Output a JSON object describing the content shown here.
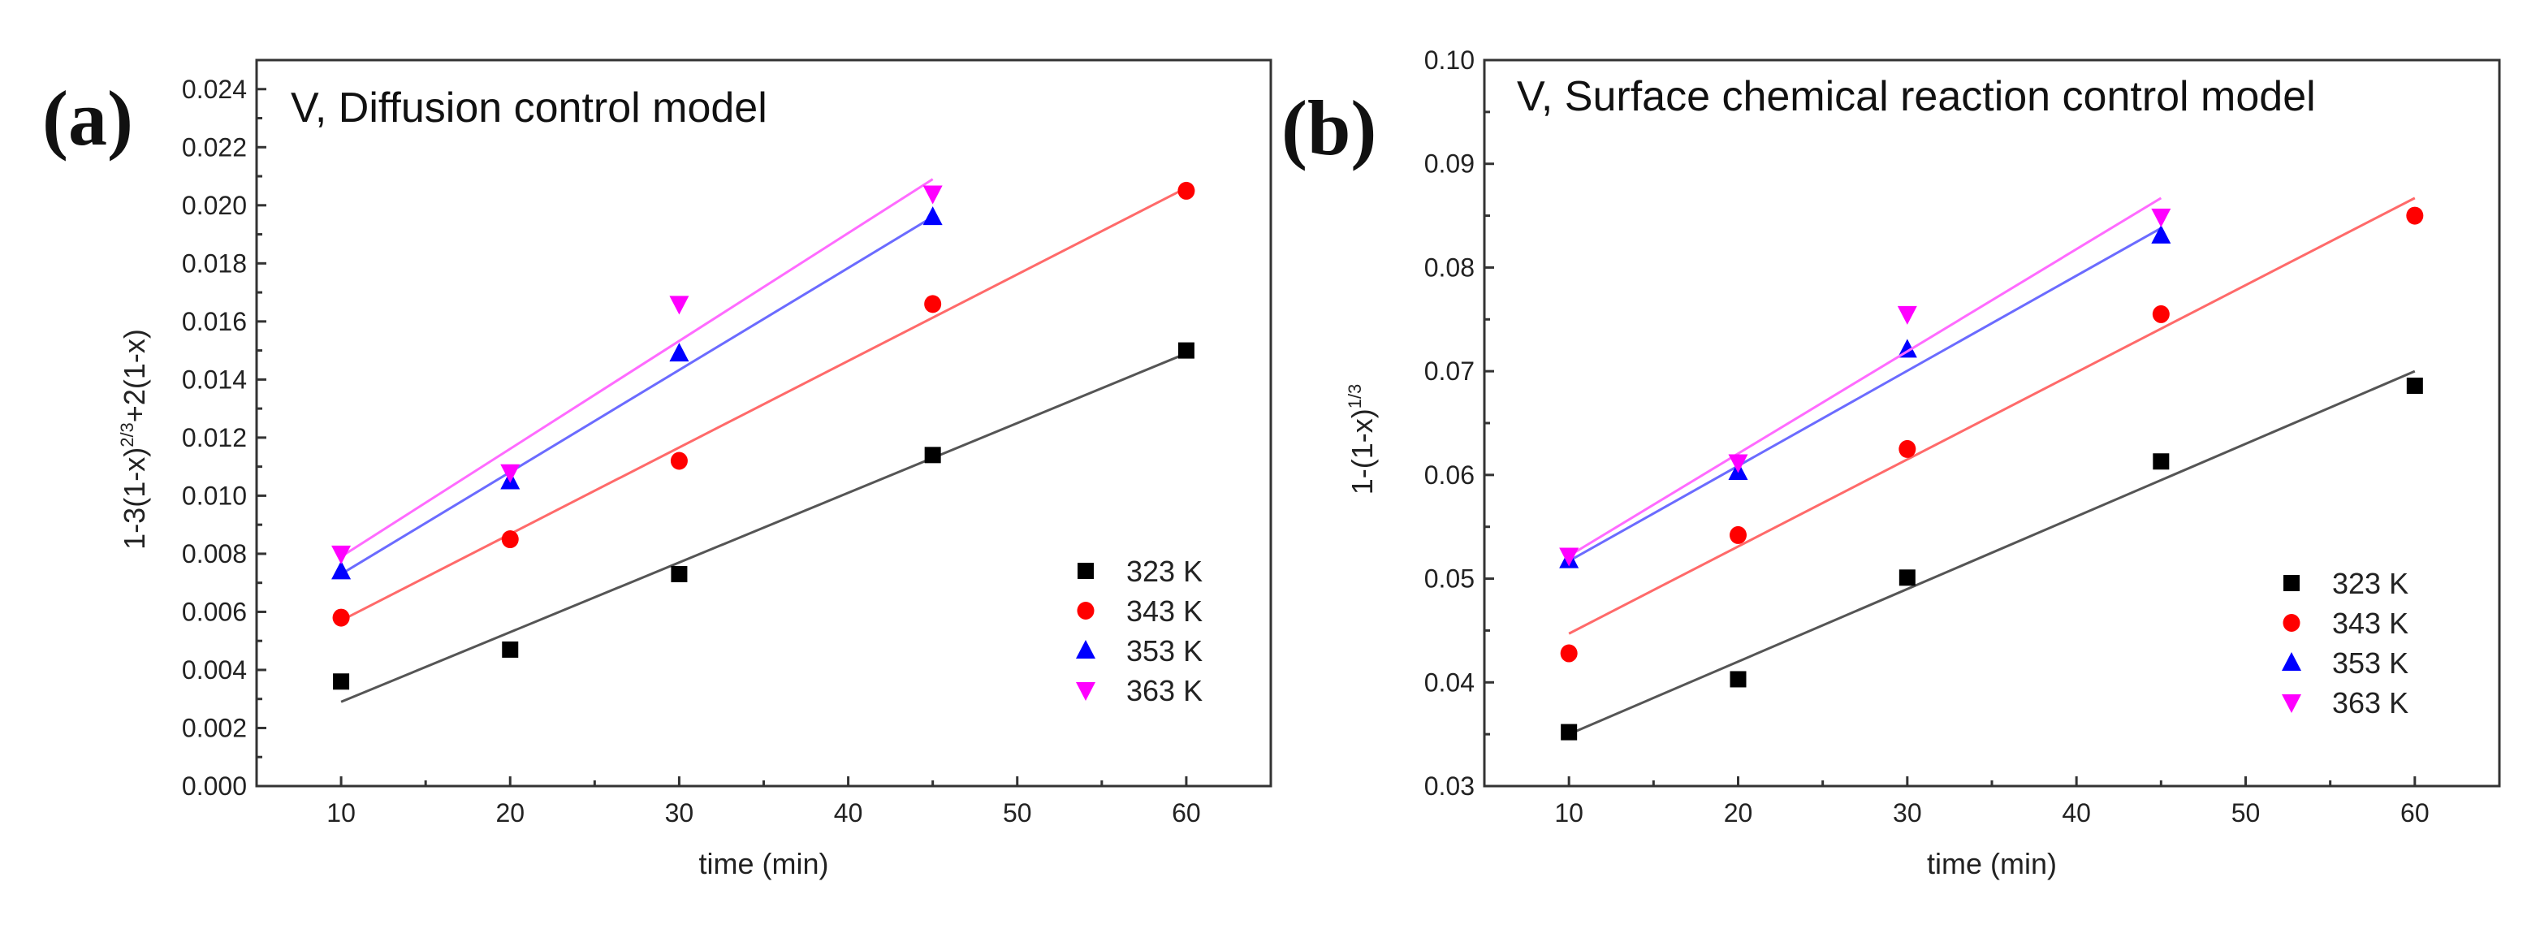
{
  "chart_data": [
    {
      "type": "scatter",
      "panel_label": "(a)",
      "title": "V, Diffusion control model",
      "xlabel": "time (min)",
      "ylabel": "1-3(1-x)",
      "ylabel_sup": "2/3",
      "ylabel_tail": "+2(1-x)",
      "xlim": [
        5,
        65
      ],
      "ylim": [
        0,
        0.025
      ],
      "xticks": [
        10,
        20,
        30,
        40,
        50,
        60
      ],
      "yticks": [
        0.0,
        0.002,
        0.004,
        0.006,
        0.008,
        0.01,
        0.012,
        0.014,
        0.016,
        0.018,
        0.02,
        0.022,
        0.024
      ],
      "ytick_labels": [
        "0.000",
        "0.002",
        "0.004",
        "0.006",
        "0.008",
        "0.010",
        "0.012",
        "0.014",
        "0.016",
        "0.018",
        "0.020",
        "0.022",
        "0.024"
      ],
      "legend_position": "bottom-right",
      "series": [
        {
          "name": "323 K",
          "marker": "square",
          "color": "#000000",
          "fit_color": "#555555",
          "x": [
            10,
            20,
            30,
            45,
            60
          ],
          "y": [
            0.0036,
            0.0047,
            0.0073,
            0.0114,
            0.015
          ],
          "fit": [
            [
              10,
              0.0029
            ],
            [
              60,
              0.0149
            ]
          ]
        },
        {
          "name": "343 K",
          "marker": "circle",
          "color": "#ff0000",
          "fit_color": "#ff6a6a",
          "x": [
            10,
            20,
            30,
            45,
            60
          ],
          "y": [
            0.0058,
            0.0085,
            0.0112,
            0.0166,
            0.0205
          ],
          "fit": [
            [
              10,
              0.0057
            ],
            [
              60,
              0.0206
            ]
          ]
        },
        {
          "name": "353 K",
          "marker": "triangle-up",
          "color": "#0000ff",
          "fit_color": "#6b6bff",
          "x": [
            10,
            20,
            30,
            45
          ],
          "y": [
            0.0074,
            0.0105,
            0.0149,
            0.0196
          ],
          "fit": [
            [
              10,
              0.0073
            ],
            [
              45,
              0.0196
            ]
          ]
        },
        {
          "name": "363 K",
          "marker": "triangle-down",
          "color": "#ff00ff",
          "fit_color": "#ff6bff",
          "x": [
            10,
            20,
            30,
            45
          ],
          "y": [
            0.008,
            0.0108,
            0.0166,
            0.0204
          ],
          "fit": [
            [
              10,
              0.0079
            ],
            [
              45,
              0.0209
            ]
          ]
        }
      ]
    },
    {
      "type": "scatter",
      "panel_label": "(b)",
      "title": "V, Surface chemical reaction control model",
      "xlabel": "time (min)",
      "ylabel": "1-(1-x)",
      "ylabel_sup": "1/3",
      "ylabel_tail": "",
      "xlim": [
        5,
        65
      ],
      "ylim": [
        0.03,
        0.1
      ],
      "xticks": [
        10,
        20,
        30,
        40,
        50,
        60
      ],
      "yticks": [
        0.03,
        0.04,
        0.05,
        0.06,
        0.07,
        0.08,
        0.09,
        0.1
      ],
      "ytick_labels": [
        "0.03",
        "0.04",
        "0.05",
        "0.06",
        "0.07",
        "0.08",
        "0.09",
        "0.10"
      ],
      "legend_position": "bottom-right",
      "series": [
        {
          "name": "323 K",
          "marker": "square",
          "color": "#000000",
          "fit_color": "#555555",
          "x": [
            10,
            20,
            30,
            45,
            60
          ],
          "y": [
            0.0352,
            0.0403,
            0.0501,
            0.0613,
            0.0686
          ],
          "fit": [
            [
              10,
              0.035
            ],
            [
              60,
              0.07
            ]
          ]
        },
        {
          "name": "343 K",
          "marker": "circle",
          "color": "#ff0000",
          "fit_color": "#ff6a6a",
          "x": [
            10,
            20,
            30,
            45,
            60
          ],
          "y": [
            0.0428,
            0.0542,
            0.0625,
            0.0755,
            0.085
          ],
          "fit": [
            [
              10,
              0.0447
            ],
            [
              60,
              0.0867
            ]
          ]
        },
        {
          "name": "353 K",
          "marker": "triangle-up",
          "color": "#0000ff",
          "fit_color": "#6b6bff",
          "x": [
            10,
            20,
            30,
            45
          ],
          "y": [
            0.0518,
            0.0603,
            0.0721,
            0.0831
          ],
          "fit": [
            [
              10,
              0.0517
            ],
            [
              45,
              0.0838
            ]
          ]
        },
        {
          "name": "363 K",
          "marker": "triangle-down",
          "color": "#ff00ff",
          "fit_color": "#ff6bff",
          "x": [
            10,
            20,
            30,
            45
          ],
          "y": [
            0.0522,
            0.0612,
            0.0755,
            0.0849
          ],
          "fit": [
            [
              10,
              0.0522
            ],
            [
              45,
              0.0867
            ]
          ]
        }
      ]
    }
  ]
}
